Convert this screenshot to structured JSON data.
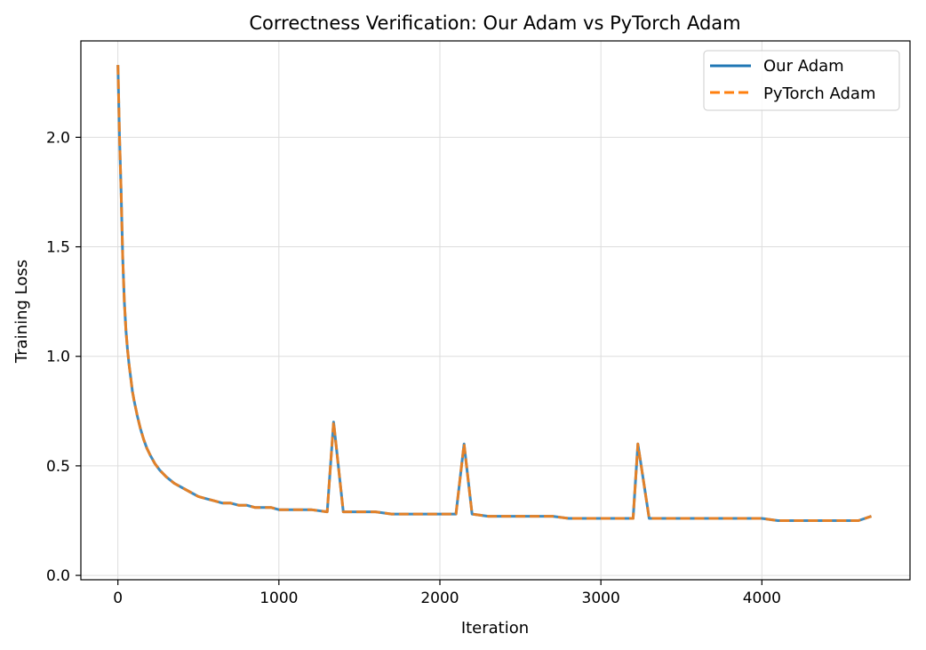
{
  "chart_data": {
    "type": "line",
    "title": "Correctness Verification: Our Adam vs PyTorch Adam",
    "xlabel": "Iteration",
    "ylabel": "Training Loss",
    "xlim": [
      -230,
      4920
    ],
    "ylim": [
      -0.02,
      2.44
    ],
    "xticks": [
      0,
      1000,
      2000,
      3000,
      4000
    ],
    "yticks": [
      0.0,
      0.5,
      1.0,
      1.5,
      2.0
    ],
    "xtick_labels": [
      "0",
      "1000",
      "2000",
      "3000",
      "4000"
    ],
    "ytick_labels": [
      "0.0",
      "0.5",
      "1.0",
      "1.5",
      "2.0"
    ],
    "grid": true,
    "legend_position": "top-right",
    "series": [
      {
        "name": "Our Adam",
        "style": "solid",
        "color": "#1f77b4",
        "x": [
          0,
          10,
          20,
          30,
          40,
          50,
          60,
          70,
          80,
          90,
          100,
          120,
          140,
          160,
          180,
          200,
          230,
          260,
          300,
          350,
          400,
          450,
          500,
          550,
          600,
          650,
          700,
          750,
          800,
          850,
          900,
          950,
          1000,
          1100,
          1200,
          1300,
          1340,
          1400,
          1500,
          1600,
          1700,
          1800,
          1900,
          2000,
          2100,
          2150,
          2200,
          2300,
          2400,
          2500,
          2600,
          2700,
          2800,
          2900,
          3000,
          3100,
          3200,
          3230,
          3300,
          3400,
          3500,
          3600,
          3700,
          3800,
          3900,
          4000,
          4100,
          4200,
          4300,
          4400,
          4500,
          4600,
          4680
        ],
        "values": [
          2.33,
          2.0,
          1.75,
          1.45,
          1.25,
          1.12,
          1.03,
          0.96,
          0.9,
          0.84,
          0.8,
          0.73,
          0.67,
          0.62,
          0.58,
          0.55,
          0.51,
          0.48,
          0.45,
          0.42,
          0.4,
          0.38,
          0.36,
          0.35,
          0.34,
          0.33,
          0.33,
          0.32,
          0.32,
          0.31,
          0.31,
          0.31,
          0.3,
          0.3,
          0.3,
          0.29,
          0.7,
          0.29,
          0.29,
          0.29,
          0.28,
          0.28,
          0.28,
          0.28,
          0.28,
          0.6,
          0.28,
          0.27,
          0.27,
          0.27,
          0.27,
          0.27,
          0.26,
          0.26,
          0.26,
          0.26,
          0.26,
          0.6,
          0.26,
          0.26,
          0.26,
          0.26,
          0.26,
          0.26,
          0.26,
          0.26,
          0.25,
          0.25,
          0.25,
          0.25,
          0.25,
          0.25,
          0.27
        ]
      },
      {
        "name": "PyTorch Adam",
        "style": "dashed",
        "color": "#ff7f0e",
        "x": [
          0,
          10,
          20,
          30,
          40,
          50,
          60,
          70,
          80,
          90,
          100,
          120,
          140,
          160,
          180,
          200,
          230,
          260,
          300,
          350,
          400,
          450,
          500,
          550,
          600,
          650,
          700,
          750,
          800,
          850,
          900,
          950,
          1000,
          1100,
          1200,
          1300,
          1340,
          1400,
          1500,
          1600,
          1700,
          1800,
          1900,
          2000,
          2100,
          2150,
          2200,
          2300,
          2400,
          2500,
          2600,
          2700,
          2800,
          2900,
          3000,
          3100,
          3200,
          3230,
          3300,
          3400,
          3500,
          3600,
          3700,
          3800,
          3900,
          4000,
          4100,
          4200,
          4300,
          4400,
          4500,
          4600,
          4680
        ],
        "values": [
          2.33,
          2.0,
          1.75,
          1.45,
          1.25,
          1.12,
          1.03,
          0.96,
          0.9,
          0.84,
          0.8,
          0.73,
          0.67,
          0.62,
          0.58,
          0.55,
          0.51,
          0.48,
          0.45,
          0.42,
          0.4,
          0.38,
          0.36,
          0.35,
          0.34,
          0.33,
          0.33,
          0.32,
          0.32,
          0.31,
          0.31,
          0.31,
          0.3,
          0.3,
          0.3,
          0.29,
          0.7,
          0.29,
          0.29,
          0.29,
          0.28,
          0.28,
          0.28,
          0.28,
          0.28,
          0.6,
          0.28,
          0.27,
          0.27,
          0.27,
          0.27,
          0.27,
          0.26,
          0.26,
          0.26,
          0.26,
          0.26,
          0.6,
          0.26,
          0.26,
          0.26,
          0.26,
          0.26,
          0.26,
          0.26,
          0.26,
          0.25,
          0.25,
          0.25,
          0.25,
          0.25,
          0.25,
          0.27
        ]
      }
    ]
  }
}
